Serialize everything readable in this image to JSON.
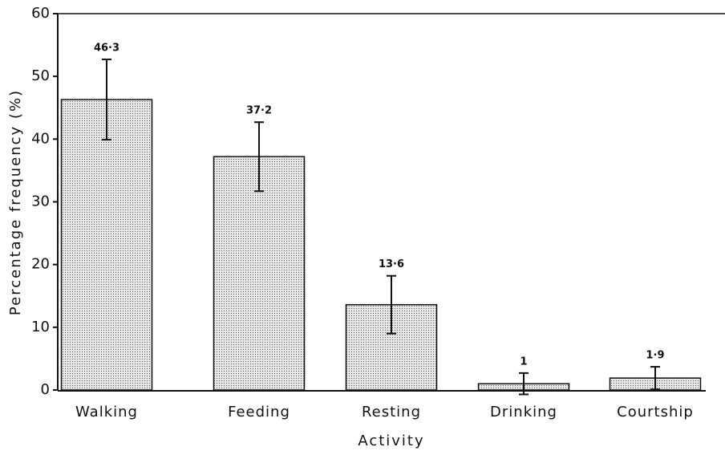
{
  "chart_data": {
    "type": "bar",
    "xlabel": "Activity",
    "ylabel": "Percentage frequency (%)",
    "categories": [
      "Walking",
      "Feeding",
      "Resting",
      "Drinking",
      "Courtship"
    ],
    "values": [
      46.3,
      37.2,
      13.6,
      1,
      1.9
    ],
    "value_labels": [
      "46·3",
      "37·2",
      "13·6",
      "1",
      "1·9"
    ],
    "errors": [
      6.4,
      5.5,
      4.6,
      1.7,
      1.8
    ],
    "color": "#d8d8d8",
    "ylim": [
      0,
      60
    ],
    "yticks": [
      0,
      10,
      20,
      30,
      40,
      50,
      60
    ],
    "grid": false
  }
}
